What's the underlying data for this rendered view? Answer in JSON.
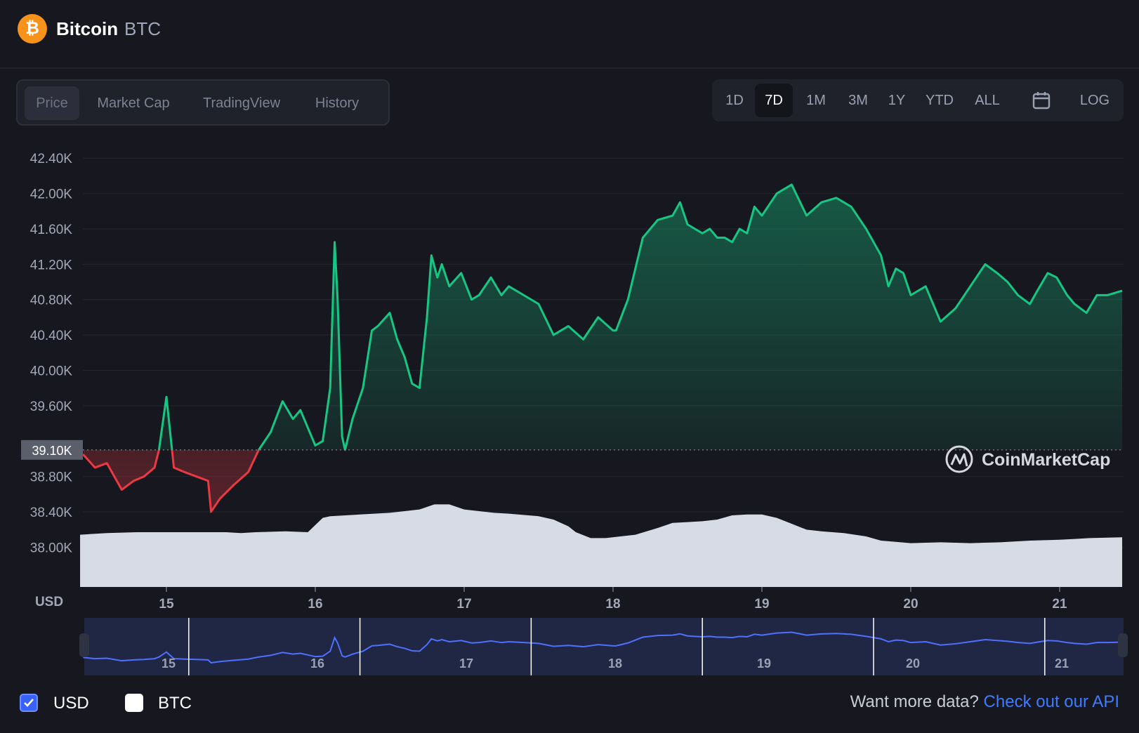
{
  "header": {
    "coin_name": "Bitcoin",
    "coin_symbol": "BTC",
    "logo_glyph": "₿",
    "logo_color": "#f7931a"
  },
  "tabs": [
    "Price",
    "Market Cap",
    "TradingView",
    "History"
  ],
  "active_tab": "Price",
  "ranges": [
    "1D",
    "7D",
    "1M",
    "3M",
    "1Y",
    "YTD",
    "ALL"
  ],
  "active_range": "7D",
  "calendar_icon": "calendar-icon",
  "log_label": "LOG",
  "chart_data": {
    "type": "area",
    "currency_label": "USD",
    "y_ticks": [
      "42.40K",
      "42.00K",
      "41.60K",
      "41.20K",
      "40.80K",
      "40.40K",
      "40.00K",
      "39.60K",
      "38.80K",
      "38.40K",
      "38.00K"
    ],
    "ylim": [
      37550,
      42600
    ],
    "x_ticks": [
      "15",
      "16",
      "17",
      "18",
      "19",
      "20",
      "21"
    ],
    "reference_price": 39100,
    "reference_label": "39.10K",
    "up_color": "#16c784",
    "down_color": "#ea3943",
    "price_series": {
      "x": [
        14.44,
        14.52,
        14.6,
        14.7,
        14.78,
        14.85,
        14.92,
        14.95,
        15.0,
        15.05,
        15.12,
        15.2,
        15.28,
        15.3,
        15.36,
        15.45,
        15.55,
        15.62,
        15.7,
        15.78,
        15.85,
        15.9,
        15.95,
        16.0,
        16.05,
        16.1,
        16.13,
        16.15,
        16.18,
        16.2,
        16.25,
        16.32,
        16.38,
        16.42,
        16.5,
        16.55,
        16.6,
        16.65,
        16.7,
        16.75,
        16.78,
        16.82,
        16.85,
        16.9,
        16.98,
        17.05,
        17.1,
        17.18,
        17.25,
        17.3,
        17.4,
        17.5,
        17.6,
        17.7,
        17.8,
        17.9,
        18.0,
        18.02,
        18.1,
        18.2,
        18.3,
        18.4,
        18.45,
        18.5,
        18.6,
        18.65,
        18.7,
        18.72,
        18.75,
        18.8,
        18.85,
        18.9,
        18.95,
        19.0,
        19.1,
        19.2,
        19.3,
        19.4,
        19.5,
        19.6,
        19.7,
        19.8,
        19.85,
        19.9,
        19.95,
        20.0,
        20.1,
        20.2,
        20.3,
        20.4,
        20.5,
        20.58,
        20.65,
        20.72,
        20.8,
        20.85,
        20.92,
        20.98,
        21.05,
        21.1,
        21.18,
        21.25,
        21.32,
        21.42
      ],
      "y": [
        39050,
        38900,
        38950,
        38650,
        38750,
        38800,
        38900,
        39100,
        39700,
        38900,
        38850,
        38800,
        38750,
        38400,
        38550,
        38700,
        38850,
        39100,
        39300,
        39650,
        39450,
        39550,
        39350,
        39150,
        39200,
        39800,
        41450,
        40800,
        39250,
        39100,
        39450,
        39800,
        40450,
        40500,
        40650,
        40350,
        40150,
        39850,
        39800,
        40600,
        41300,
        41050,
        41200,
        40950,
        41100,
        40800,
        40850,
        41050,
        40850,
        40950,
        40850,
        40750,
        40400,
        40500,
        40350,
        40600,
        40450,
        40450,
        40800,
        41500,
        41700,
        41750,
        41900,
        41650,
        41550,
        41600,
        41500,
        41500,
        41500,
        41450,
        41600,
        41550,
        41850,
        41750,
        42000,
        42100,
        41750,
        41900,
        41950,
        41850,
        41600,
        41300,
        40950,
        41150,
        41100,
        40850,
        40950,
        40550,
        40700,
        40950,
        41200,
        41100,
        41000,
        40850,
        40750,
        40900,
        41100,
        41050,
        40850,
        40750,
        40650,
        40850,
        40850,
        40900
      ],
      "up_segments_start": 14.44
    },
    "volume_series": {
      "x": [
        14.42,
        14.6,
        14.8,
        15.0,
        15.2,
        15.4,
        15.5,
        15.6,
        15.8,
        15.95,
        16.05,
        16.1,
        16.3,
        16.5,
        16.6,
        16.7,
        16.8,
        16.9,
        17.0,
        17.1,
        17.2,
        17.3,
        17.5,
        17.6,
        17.7,
        17.75,
        17.85,
        17.95,
        18.05,
        18.15,
        18.3,
        18.4,
        18.5,
        18.6,
        18.7,
        18.8,
        18.9,
        19.0,
        19.1,
        19.2,
        19.3,
        19.4,
        19.55,
        19.7,
        19.8,
        20.0,
        20.2,
        20.4,
        20.6,
        20.8,
        21.0,
        21.2,
        21.42
      ],
      "y": [
        0.62,
        0.64,
        0.65,
        0.65,
        0.65,
        0.65,
        0.64,
        0.65,
        0.66,
        0.65,
        0.82,
        0.84,
        0.86,
        0.88,
        0.9,
        0.92,
        0.98,
        0.98,
        0.92,
        0.9,
        0.88,
        0.87,
        0.84,
        0.8,
        0.72,
        0.65,
        0.58,
        0.58,
        0.6,
        0.62,
        0.7,
        0.76,
        0.77,
        0.78,
        0.8,
        0.85,
        0.86,
        0.86,
        0.82,
        0.75,
        0.68,
        0.66,
        0.64,
        0.6,
        0.55,
        0.52,
        0.53,
        0.52,
        0.53,
        0.55,
        0.56,
        0.58,
        0.59
      ]
    },
    "navigator_labels": [
      "15",
      "16",
      "17",
      "18",
      "19",
      "20",
      "21"
    ]
  },
  "watermark": {
    "brand": "CoinMarketCap",
    "logo_icon": "coinmarketcap-logo-icon"
  },
  "footer": {
    "usd_label": "USD",
    "btc_label": "BTC",
    "usd_checked": true,
    "btc_checked": false,
    "api_prompt": "Want more data?",
    "api_link": "Check out our API"
  }
}
